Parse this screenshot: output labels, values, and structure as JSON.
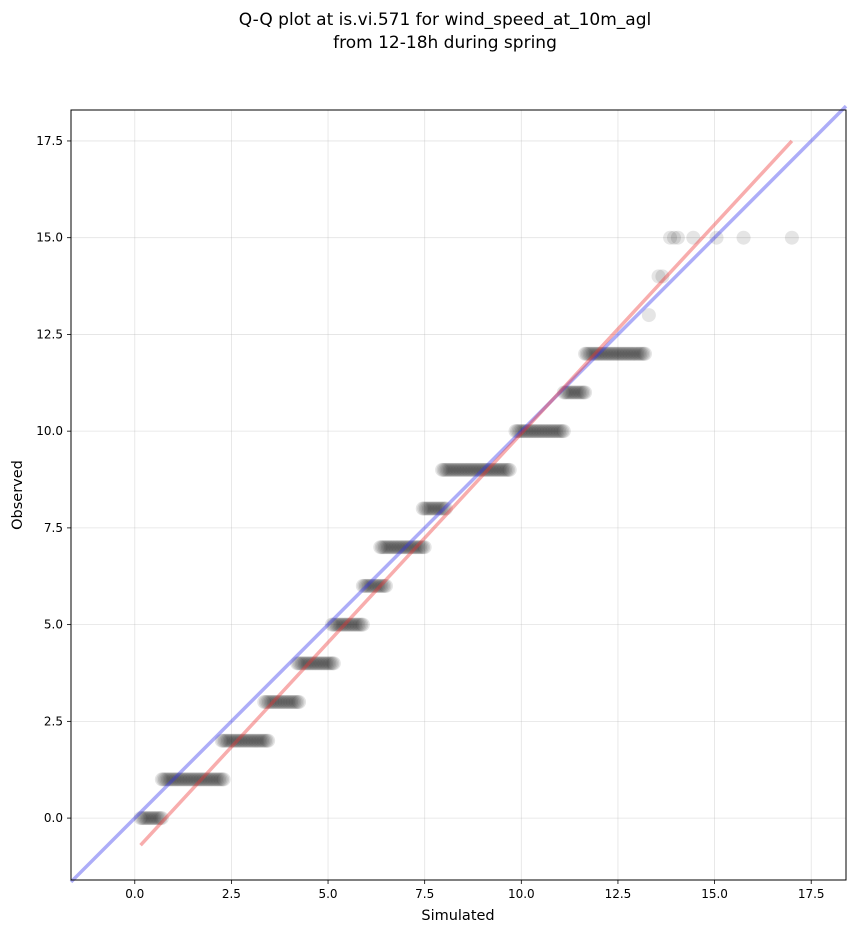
{
  "chart_data": {
    "type": "scatter",
    "title": "Q-Q plot at is.vi.571 for wind_speed_at_10m_agl\nfrom 12-18h during spring",
    "xlabel": "Simulated",
    "ylabel": "Observed",
    "xlim": [
      -1.65,
      18.4
    ],
    "ylim": [
      -1.6,
      18.3
    ],
    "xticks": [
      0.0,
      2.5,
      5.0,
      7.5,
      10.0,
      12.5,
      15.0,
      17.5
    ],
    "yticks": [
      0.0,
      2.5,
      5.0,
      7.5,
      10.0,
      12.5,
      15.0,
      17.5
    ],
    "xtick_labels": [
      "0.0",
      "2.5",
      "5.0",
      "7.5",
      "10.0",
      "12.5",
      "15.0",
      "17.5"
    ],
    "ytick_labels": [
      "0.0",
      "2.5",
      "5.0",
      "7.5",
      "10.0",
      "12.5",
      "15.0",
      "17.5"
    ],
    "grid": true,
    "point_color": "#000000",
    "point_alpha": 0.1,
    "point_runs": [
      {
        "y": 0,
        "x_start": 0.15,
        "x_end": 0.7
      },
      {
        "y": 1,
        "x_start": 0.7,
        "x_end": 2.3
      },
      {
        "y": 2,
        "x_start": 2.25,
        "x_end": 3.45
      },
      {
        "y": 3,
        "x_start": 3.35,
        "x_end": 4.25
      },
      {
        "y": 4,
        "x_start": 4.2,
        "x_end": 5.15
      },
      {
        "y": 5,
        "x_start": 5.1,
        "x_end": 5.9
      },
      {
        "y": 6,
        "x_start": 5.9,
        "x_end": 6.5
      },
      {
        "y": 7,
        "x_start": 6.35,
        "x_end": 7.5
      },
      {
        "y": 8,
        "x_start": 7.45,
        "x_end": 8.05
      },
      {
        "y": 9,
        "x_start": 7.95,
        "x_end": 9.7
      },
      {
        "y": 10,
        "x_start": 9.85,
        "x_end": 11.1
      },
      {
        "y": 11,
        "x_start": 11.1,
        "x_end": 11.65
      },
      {
        "y": 12,
        "x_start": 11.65,
        "x_end": 13.2
      }
    ],
    "extra_points": [
      {
        "x": 13.3,
        "y": 13
      },
      {
        "x": 13.55,
        "y": 14
      },
      {
        "x": 13.65,
        "y": 14
      },
      {
        "x": 13.85,
        "y": 15
      },
      {
        "x": 13.95,
        "y": 15
      },
      {
        "x": 14.05,
        "y": 15
      },
      {
        "x": 14.45,
        "y": 15
      },
      {
        "x": 15.05,
        "y": 15
      },
      {
        "x": 15.75,
        "y": 15
      },
      {
        "x": 17.0,
        "y": 15
      }
    ],
    "series": [
      {
        "line": "identity",
        "color": "#3333ee",
        "alpha": 0.4,
        "x": [
          -1.65,
          18.4
        ],
        "y": [
          -1.65,
          18.4
        ]
      },
      {
        "line": "fit",
        "color": "#ee3333",
        "alpha": 0.4,
        "x": [
          0.15,
          17.0
        ],
        "y": [
          -0.7,
          17.5
        ]
      }
    ]
  }
}
